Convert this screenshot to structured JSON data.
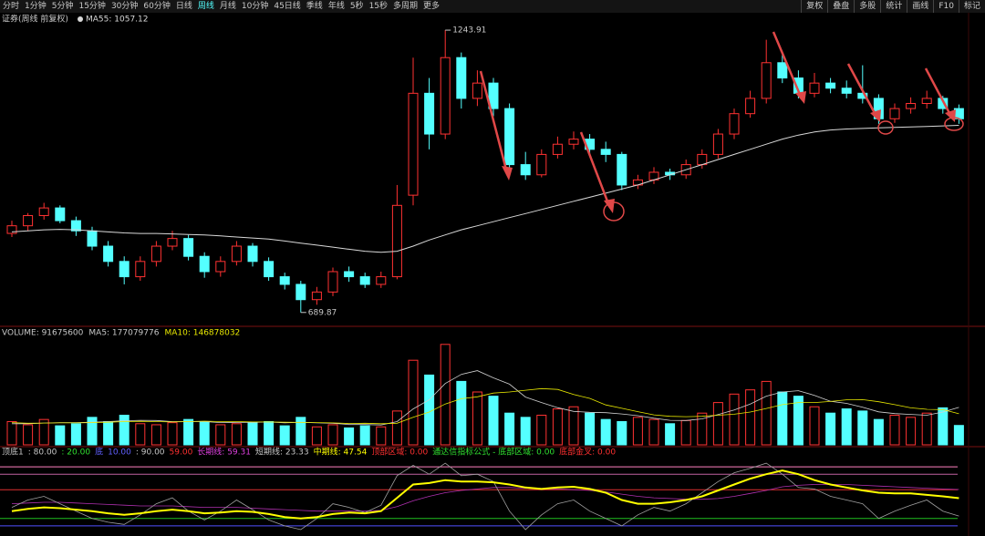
{
  "toolbar": {
    "left": [
      "分时",
      "1分钟",
      "5分钟",
      "15分钟",
      "30分钟",
      "60分钟",
      "日线",
      "周线",
      "月线",
      "10分钟",
      "45日线",
      "季线",
      "年线",
      "5秒",
      "15秒",
      "多周期",
      "更多"
    ],
    "active": 7,
    "right": [
      "复权",
      "叠盘",
      "多股",
      "统计",
      "画线",
      "F10",
      "标记"
    ]
  },
  "chart_data": [
    {
      "type": "candlestick",
      "title": "证券(周线 前复权)",
      "ma_label": "MA55: 1057.12",
      "up_color": "#ff3232",
      "down_color": "#54ffff",
      "ma_color": "#d8d8d8",
      "ylim": [
        668,
        1278
      ],
      "open": [
        845,
        860,
        880,
        895,
        870,
        850,
        820,
        790,
        760,
        790,
        820,
        835,
        800,
        770,
        790,
        820,
        790,
        760,
        745,
        715,
        730,
        770,
        760,
        745,
        760,
        920,
        1120,
        1040,
        1190,
        1110,
        1140,
        1090,
        980,
        960,
        1000,
        1020,
        1030,
        1010,
        1000,
        940,
        950,
        965,
        960,
        980,
        1000,
        1040,
        1080,
        1110,
        1180,
        1150,
        1120,
        1140,
        1130,
        1120,
        1110,
        1070,
        1090,
        1100,
        1110,
        1090
      ],
      "high": [
        870,
        885,
        905,
        900,
        878,
        858,
        830,
        800,
        800,
        830,
        850,
        842,
        808,
        800,
        830,
        826,
        798,
        768,
        752,
        740,
        778,
        780,
        768,
        770,
        940,
        1190,
        1150,
        1243.91,
        1200,
        1165,
        1150,
        1100,
        1005,
        1010,
        1035,
        1045,
        1040,
        1025,
        1005,
        960,
        975,
        972,
        990,
        1010,
        1050,
        1090,
        1125,
        1225,
        1200,
        1165,
        1160,
        1150,
        1145,
        1175,
        1118,
        1100,
        1112,
        1125,
        1115,
        1098
      ],
      "low": [
        838,
        850,
        872,
        865,
        840,
        812,
        780,
        745,
        752,
        780,
        812,
        792,
        758,
        760,
        782,
        780,
        752,
        735,
        689.87,
        705,
        722,
        750,
        738,
        738,
        755,
        900,
        1010,
        1030,
        1090,
        1095,
        1075,
        965,
        950,
        955,
        992,
        1010,
        1000,
        985,
        930,
        932,
        942,
        950,
        952,
        972,
        992,
        1030,
        1072,
        1100,
        1140,
        1110,
        1112,
        1120,
        1110,
        1100,
        1060,
        1062,
        1080,
        1090,
        1080,
        1060
      ],
      "close": [
        860,
        880,
        895,
        870,
        850,
        820,
        790,
        760,
        790,
        820,
        835,
        800,
        770,
        790,
        820,
        790,
        760,
        745,
        715,
        730,
        770,
        760,
        745,
        760,
        900,
        1120,
        1040,
        1190,
        1110,
        1140,
        1090,
        980,
        960,
        1000,
        1020,
        1030,
        1010,
        1000,
        940,
        950,
        965,
        960,
        980,
        1000,
        1040,
        1080,
        1110,
        1180,
        1150,
        1120,
        1140,
        1130,
        1120,
        1110,
        1070,
        1090,
        1100,
        1110,
        1090,
        1070
      ],
      "ma": [
        848,
        850,
        852,
        853,
        852,
        850,
        848,
        846,
        845,
        845,
        844,
        843,
        842,
        840,
        838,
        836,
        834,
        830,
        826,
        822,
        818,
        814,
        810,
        808,
        810,
        820,
        832,
        842,
        852,
        860,
        868,
        876,
        884,
        892,
        900,
        908,
        916,
        924,
        932,
        940,
        950,
        960,
        970,
        980,
        990,
        1000,
        1010,
        1020,
        1030,
        1038,
        1044,
        1048,
        1050,
        1051,
        1052,
        1053,
        1054,
        1055,
        1056,
        1057.12
      ]
    },
    {
      "type": "bar",
      "header": [
        {
          "text": "VOLUME: 91675600",
          "color": "#c8c8c8"
        },
        {
          "text": "MA5: 177079776",
          "color": "#c8c8c8"
        },
        {
          "text": "MA10: 146878032",
          "color": "#e8e800"
        }
      ],
      "ylim": [
        0,
        500000000.0
      ],
      "values": [
        110000000.0,
        95000000.0,
        120000000.0,
        90000000.0,
        100000000.0,
        130000000.0,
        110000000.0,
        140000000.0,
        100000000.0,
        95000000.0,
        105000000.0,
        120000000.0,
        110000000.0,
        95000000.0,
        100000000.0,
        105000000.0,
        110000000.0,
        90000000.0,
        130000000.0,
        85000000.0,
        95000000.0,
        80000000.0,
        90000000.0,
        85000000.0,
        160000000.0,
        400000000.0,
        330000000.0,
        475000000.0,
        300000000.0,
        250000000.0,
        230000000.0,
        150000000.0,
        130000000.0,
        140000000.0,
        170000000.0,
        180000000.0,
        150000000.0,
        120000000.0,
        110000000.0,
        130000000.0,
        120000000.0,
        100000000.0,
        115000000.0,
        150000000.0,
        200000000.0,
        240000000.0,
        260000000.0,
        300000000.0,
        250000000.0,
        230000000.0,
        180000000.0,
        150000000.0,
        170000000.0,
        160000000.0,
        120000000.0,
        140000000.0,
        130000000.0,
        150000000.0,
        175000000.0,
        91675600
      ],
      "series": [
        {
          "name": "MA5",
          "color": "#d0d0d0",
          "values": [
            100000000.0,
            100000000.0,
            103000000.0,
            105000000.0,
            105000000.0,
            107000000.0,
            110000000.0,
            114000000.0,
            116000000.0,
            115000000.0,
            110000000.0,
            110000000.0,
            110000000.0,
            105000000.0,
            106000000.0,
            106000000.0,
            108000000.0,
            104000000.0,
            107000000.0,
            104000000.0,
            102000000.0,
            96000000.0,
            96000000.0,
            94000000.0,
            110000000.0,
            170000000.0,
            213000000.0,
            290000000.0,
            333000000.0,
            351000000.0,
            317000000.0,
            287000000.0,
            226000000.0,
            200000000.0,
            176000000.0,
            158000000.0,
            154000000.0,
            152000000.0,
            146000000.0,
            138000000.0,
            126000000.0,
            116000000.0,
            115000000.0,
            123000000.0,
            143000000.0,
            165000000.0,
            193000000.0,
            230000000.0,
            250000000.0,
            256000000.0,
            234000000.0,
            206000000.0,
            196000000.0,
            178000000.0,
            156000000.0,
            148000000.0,
            144000000.0,
            140000000.0,
            155000000.0,
            177079776
          ]
        },
        {
          "name": "MA10",
          "color": "#e8e800",
          "values": [
            105000000.0,
            102000000.0,
            103000000.0,
            104000000.0,
            104000000.0,
            105000000.0,
            107000000.0,
            110000000.0,
            111000000.0,
            110000000.0,
            108000000.0,
            110000000.0,
            112000000.0,
            110000000.0,
            110000000.0,
            108000000.0,
            108000000.0,
            107000000.0,
            106000000.0,
            105000000.0,
            104000000.0,
            101000000.0,
            102000000.0,
            100000000.0,
            102000000.0,
            130000000.0,
            155000000.0,
            193000000.0,
            218000000.0,
            227000000.0,
            245000000.0,
            250000000.0,
            258000000.0,
            266000000.0,
            262000000.0,
            238000000.0,
            220000000.0,
            189000000.0,
            173000000.0,
            157000000.0,
            142000000.0,
            135000000.0,
            133000000.0,
            135000000.0,
            140000000.0,
            145000000.0,
            155000000.0,
            172000000.0,
            190000000.0,
            200000000.0,
            200000000.0,
            205000000.0,
            213000000.0,
            214000000.0,
            204000000.0,
            190000000.0,
            175000000.0,
            168000000.0,
            167000000.0,
            146878032
          ]
        }
      ]
    },
    {
      "type": "line",
      "header": [
        {
          "text": "顶底1",
          "color": "#c8c8c8"
        },
        {
          "text": ": 80.00",
          "color": "#c8c8c8"
        },
        {
          "text": ": 20.00",
          "color": "#30e030"
        },
        {
          "text": "底",
          "color": "#6060ff"
        },
        {
          "text": "10.00",
          "color": "#6060ff"
        },
        {
          "text": ": 90.00",
          "color": "#c8c8c8"
        },
        {
          "text": "59.00",
          "color": "#ff3030"
        },
        {
          "text": "长期线: 59.31",
          "color": "#e040e0"
        },
        {
          "text": "短期线: 23.33",
          "color": "#c8c8c8"
        },
        {
          "text": "中期线: 47.54",
          "color": "#ffff00"
        },
        {
          "text": "顶部区域: 0.00",
          "color": "#ff3030"
        },
        {
          "text": "通达信指标公式 - 底部区域: 0.00",
          "color": "#30e030"
        },
        {
          "text": "底部金叉: 0.00",
          "color": "#ff3030"
        }
      ],
      "ylim": [
        0,
        100
      ],
      "levels": [
        {
          "value": 90,
          "color": "#ff80c0"
        },
        {
          "value": 80,
          "color": "#c060a0"
        },
        {
          "value": 59,
          "color": "#e03030"
        },
        {
          "value": 20,
          "color": "#20c020"
        },
        {
          "value": 10,
          "color": "#5050ff"
        }
      ],
      "series": [
        {
          "name": "长期线",
          "color": "#b030b0",
          "values": [
            40,
            41,
            42,
            42,
            41,
            40,
            39,
            38,
            37,
            37,
            37,
            36,
            35,
            35,
            35,
            34,
            33,
            32,
            31,
            30,
            30,
            30,
            30,
            31,
            36,
            44,
            50,
            55,
            58,
            60,
            62,
            62,
            61,
            60,
            60,
            59,
            58,
            56,
            53,
            50,
            48,
            47,
            46,
            46,
            47,
            50,
            54,
            58,
            63,
            65,
            66,
            66,
            66,
            65,
            64,
            63,
            62,
            61,
            60,
            59.31
          ]
        },
        {
          "name": "短期线",
          "color": "#a0a0a0",
          "values": [
            35,
            45,
            50,
            40,
            30,
            20,
            15,
            12,
            25,
            40,
            48,
            30,
            18,
            30,
            45,
            32,
            18,
            10,
            5,
            20,
            40,
            35,
            28,
            38,
            78,
            92,
            80,
            95,
            78,
            80,
            70,
            30,
            5,
            25,
            40,
            45,
            30,
            20,
            10,
            25,
            35,
            30,
            40,
            55,
            70,
            82,
            88,
            95,
            80,
            62,
            60,
            50,
            45,
            40,
            20,
            30,
            38,
            45,
            30,
            23.33
          ]
        },
        {
          "name": "中期线",
          "color": "#ffff00",
          "values": [
            30,
            33,
            35,
            34,
            32,
            30,
            27,
            25,
            27,
            30,
            32,
            30,
            27,
            28,
            30,
            29,
            26,
            22,
            20,
            22,
            26,
            28,
            27,
            30,
            48,
            66,
            68,
            72,
            70,
            70,
            69,
            66,
            62,
            60,
            62,
            63,
            60,
            55,
            45,
            40,
            40,
            42,
            45,
            50,
            58,
            66,
            74,
            80,
            85,
            80,
            72,
            66,
            62,
            58,
            55,
            54,
            54,
            52,
            50,
            47.54
          ]
        }
      ]
    }
  ]
}
